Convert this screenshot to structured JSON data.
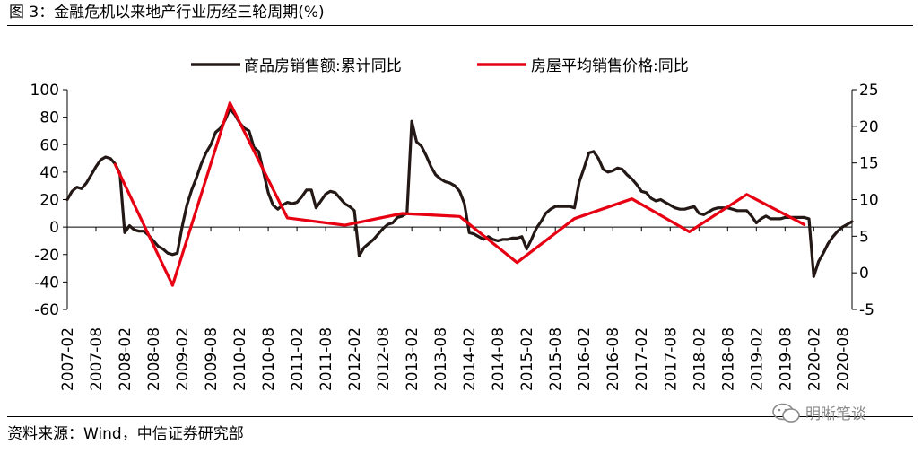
{
  "title": "图 3：金融危机以来地产行业历经三轮周期(%)",
  "source": "资料来源：Wind，中信证券研究部",
  "watermark": "明晰笔谈",
  "chart_data": {
    "type": "line",
    "left_axis": {
      "ticks": [
        100,
        80,
        60,
        40,
        20,
        0,
        -20,
        -40,
        -60
      ],
      "min": -60,
      "max": 100
    },
    "right_axis": {
      "ticks": [
        25,
        20,
        15,
        10,
        5,
        0,
        -5
      ],
      "min": -5,
      "max": 25
    },
    "x_ticks": [
      "2007-02",
      "2007-08",
      "2008-02",
      "2008-08",
      "2009-02",
      "2009-08",
      "2010-02",
      "2010-08",
      "2011-02",
      "2011-08",
      "2012-02",
      "2012-08",
      "2013-02",
      "2013-08",
      "2014-02",
      "2014-08",
      "2015-02",
      "2015-08",
      "2016-02",
      "2016-08",
      "2017-02",
      "2017-08",
      "2018-02",
      "2018-08",
      "2019-02",
      "2019-08",
      "2020-02",
      "2020-08"
    ],
    "x_range": [
      "2007-02",
      "2020-10"
    ],
    "series": [
      {
        "name": "商品房销售额:累计同比",
        "axis": "left",
        "color": "#231815",
        "points": [
          [
            "2007-02",
            20
          ],
          [
            "2007-03",
            26
          ],
          [
            "2007-04",
            29
          ],
          [
            "2007-05",
            28
          ],
          [
            "2007-06",
            32
          ],
          [
            "2007-07",
            38
          ],
          [
            "2007-08",
            44
          ],
          [
            "2007-09",
            49
          ],
          [
            "2007-10",
            51
          ],
          [
            "2007-11",
            50
          ],
          [
            "2007-12",
            46
          ],
          [
            "2008-01",
            39
          ],
          [
            "2008-02",
            -4
          ],
          [
            "2008-03",
            1
          ],
          [
            "2008-04",
            -2
          ],
          [
            "2008-05",
            -3
          ],
          [
            "2008-06",
            -3
          ],
          [
            "2008-07",
            -6
          ],
          [
            "2008-08",
            -10
          ],
          [
            "2008-09",
            -14
          ],
          [
            "2008-10",
            -16
          ],
          [
            "2008-11",
            -19
          ],
          [
            "2008-12",
            -20
          ],
          [
            "2009-01",
            -19
          ],
          [
            "2009-02",
            0
          ],
          [
            "2009-03",
            16
          ],
          [
            "2009-04",
            27
          ],
          [
            "2009-05",
            36
          ],
          [
            "2009-06",
            46
          ],
          [
            "2009-07",
            54
          ],
          [
            "2009-08",
            60
          ],
          [
            "2009-09",
            69
          ],
          [
            "2009-10",
            72
          ],
          [
            "2009-11",
            78
          ],
          [
            "2009-12",
            86
          ],
          [
            "2010-01",
            82
          ],
          [
            "2010-02",
            76
          ],
          [
            "2010-03",
            72
          ],
          [
            "2010-04",
            70
          ],
          [
            "2010-05",
            58
          ],
          [
            "2010-06",
            55
          ],
          [
            "2010-07",
            40
          ],
          [
            "2010-08",
            25
          ],
          [
            "2010-09",
            16
          ],
          [
            "2010-10",
            13
          ],
          [
            "2010-11",
            16
          ],
          [
            "2010-12",
            18
          ],
          [
            "2011-01",
            17
          ],
          [
            "2011-02",
            18
          ],
          [
            "2011-03",
            22
          ],
          [
            "2011-04",
            27
          ],
          [
            "2011-05",
            27
          ],
          [
            "2011-06",
            14
          ],
          [
            "2011-07",
            19
          ],
          [
            "2011-08",
            24
          ],
          [
            "2011-09",
            26
          ],
          [
            "2011-10",
            25
          ],
          [
            "2011-11",
            21
          ],
          [
            "2011-12",
            17
          ],
          [
            "2012-01",
            15
          ],
          [
            "2012-02",
            12
          ],
          [
            "2012-03",
            -21
          ],
          [
            "2012-04",
            -15
          ],
          [
            "2012-05",
            -12
          ],
          [
            "2012-06",
            -9
          ],
          [
            "2012-07",
            -5
          ],
          [
            "2012-08",
            -1
          ],
          [
            "2012-09",
            2
          ],
          [
            "2012-10",
            3
          ],
          [
            "2012-11",
            7
          ],
          [
            "2012-12",
            8
          ],
          [
            "2013-01",
            10
          ],
          [
            "2013-02",
            77
          ],
          [
            "2013-03",
            62
          ],
          [
            "2013-04",
            59
          ],
          [
            "2013-05",
            52
          ],
          [
            "2013-06",
            44
          ],
          [
            "2013-07",
            38
          ],
          [
            "2013-08",
            35
          ],
          [
            "2013-09",
            33
          ],
          [
            "2013-10",
            32
          ],
          [
            "2013-11",
            30
          ],
          [
            "2013-12",
            26
          ],
          [
            "2014-01",
            17
          ],
          [
            "2014-02",
            -4
          ],
          [
            "2014-03",
            -5
          ],
          [
            "2014-04",
            -7
          ],
          [
            "2014-05",
            -9
          ],
          [
            "2014-06",
            -7
          ],
          [
            "2014-07",
            -9
          ],
          [
            "2014-08",
            -10
          ],
          [
            "2014-09",
            -9
          ],
          [
            "2014-10",
            -9
          ],
          [
            "2014-11",
            -8
          ],
          [
            "2014-12",
            -8
          ],
          [
            "2015-01",
            -7
          ],
          [
            "2015-02",
            -16
          ],
          [
            "2015-03",
            -9
          ],
          [
            "2015-04",
            -1
          ],
          [
            "2015-05",
            4
          ],
          [
            "2015-06",
            10
          ],
          [
            "2015-07",
            13
          ],
          [
            "2015-08",
            15
          ],
          [
            "2015-09",
            15
          ],
          [
            "2015-10",
            15
          ],
          [
            "2015-11",
            15
          ],
          [
            "2015-12",
            14
          ],
          [
            "2016-01",
            33
          ],
          [
            "2016-02",
            43
          ],
          [
            "2016-03",
            54
          ],
          [
            "2016-04",
            55
          ],
          [
            "2016-05",
            50
          ],
          [
            "2016-06",
            42
          ],
          [
            "2016-07",
            40
          ],
          [
            "2016-08",
            41
          ],
          [
            "2016-09",
            43
          ],
          [
            "2016-10",
            42
          ],
          [
            "2016-11",
            38
          ],
          [
            "2016-12",
            35
          ],
          [
            "2017-01",
            31
          ],
          [
            "2017-02",
            26
          ],
          [
            "2017-03",
            25
          ],
          [
            "2017-04",
            21
          ],
          [
            "2017-05",
            19
          ],
          [
            "2017-06",
            20
          ],
          [
            "2017-07",
            18
          ],
          [
            "2017-08",
            16
          ],
          [
            "2017-09",
            14
          ],
          [
            "2017-10",
            13
          ],
          [
            "2017-11",
            13
          ],
          [
            "2017-12",
            14
          ],
          [
            "2018-01",
            15
          ],
          [
            "2018-02",
            10
          ],
          [
            "2018-03",
            9
          ],
          [
            "2018-04",
            11
          ],
          [
            "2018-05",
            13
          ],
          [
            "2018-06",
            14
          ],
          [
            "2018-07",
            14
          ],
          [
            "2018-08",
            14
          ],
          [
            "2018-09",
            13
          ],
          [
            "2018-10",
            12
          ],
          [
            "2018-11",
            12
          ],
          [
            "2018-12",
            12
          ],
          [
            "2019-01",
            8
          ],
          [
            "2019-02",
            3
          ],
          [
            "2019-03",
            6
          ],
          [
            "2019-04",
            8
          ],
          [
            "2019-05",
            6
          ],
          [
            "2019-06",
            6
          ],
          [
            "2019-07",
            6
          ],
          [
            "2019-08",
            7
          ],
          [
            "2019-09",
            7
          ],
          [
            "2019-10",
            7
          ],
          [
            "2019-11",
            7
          ],
          [
            "2019-12",
            7
          ],
          [
            "2020-01",
            6
          ],
          [
            "2020-02",
            -36
          ],
          [
            "2020-03",
            -25
          ],
          [
            "2020-04",
            -19
          ],
          [
            "2020-05",
            -12
          ],
          [
            "2020-06",
            -7
          ],
          [
            "2020-07",
            -3
          ],
          [
            "2020-08",
            0
          ],
          [
            "2020-09",
            2
          ],
          [
            "2020-10",
            4
          ]
        ]
      },
      {
        "name": "房屋平均销售价格:同比",
        "axis": "right",
        "color": "#e60012",
        "points": [
          [
            "2007-12",
            14.8
          ],
          [
            "2008-12",
            -1.7
          ],
          [
            "2009-12",
            23.2
          ],
          [
            "2010-12",
            7.5
          ],
          [
            "2011-12",
            6.5
          ],
          [
            "2012-12",
            8.1
          ],
          [
            "2013-12",
            7.7
          ],
          [
            "2014-12",
            1.4
          ],
          [
            "2015-12",
            7.4
          ],
          [
            "2016-12",
            10.1
          ],
          [
            "2017-12",
            5.6
          ],
          [
            "2018-12",
            10.7
          ],
          [
            "2019-12",
            6.6
          ]
        ]
      }
    ]
  }
}
